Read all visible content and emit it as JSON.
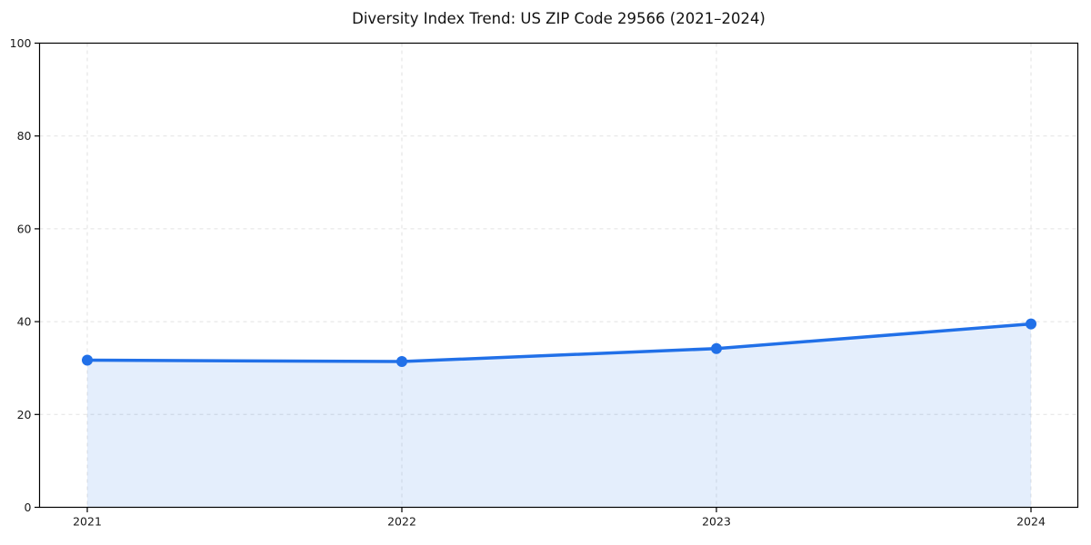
{
  "page": {
    "background": "#ffffff"
  },
  "chart_data": {
    "type": "area",
    "title": "Diversity Index Trend: US ZIP Code 29566 (2021–2024)",
    "categories": [
      "2021",
      "2022",
      "2023",
      "2024"
    ],
    "series": [
      {
        "name": "Diversity Index",
        "values": [
          31.7,
          31.4,
          34.2,
          39.5
        ]
      }
    ],
    "xlabel": "",
    "ylabel": "",
    "ylim": [
      0,
      100
    ],
    "yticks": [
      0,
      20,
      40,
      60,
      80,
      100
    ],
    "grid": true,
    "grid_style": "dashed",
    "legend_position": "none",
    "colors": {
      "line": "#2170e8",
      "marker": "#2170e8",
      "fill": "#2170e8",
      "fill_opacity": 0.12,
      "grid": "#e2e2e2",
      "axis": "#000000",
      "tick_text": "#1a1a1a",
      "title_text": "#111111"
    }
  }
}
